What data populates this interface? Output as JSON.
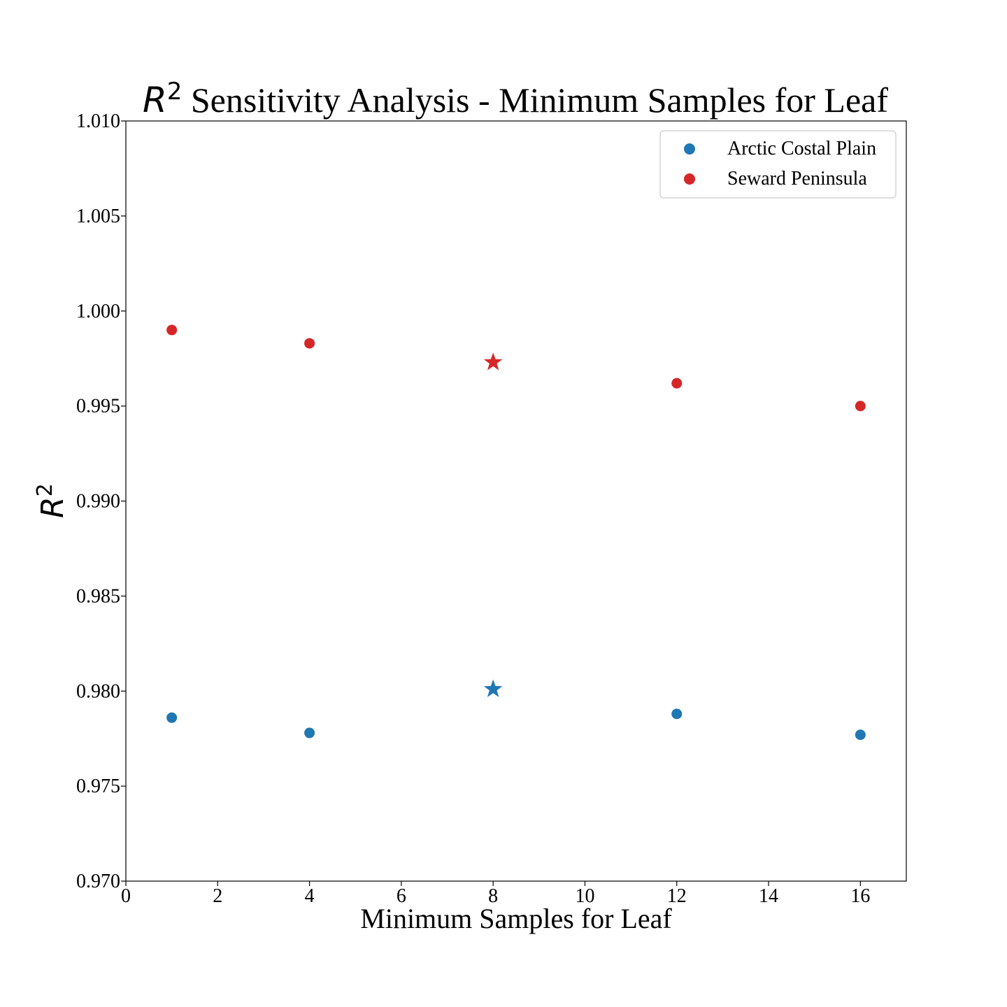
{
  "chart_data": {
    "type": "scatter",
    "title": {
      "math_symbol": "R",
      "math_superscript": "2",
      "text": " Sensitivity Analysis - Minimum Samples for Leaf"
    },
    "xlabel": "Minimum Samples for Leaf",
    "ylabel": {
      "math_symbol": "R",
      "math_superscript": "2"
    },
    "xlim": [
      0,
      17
    ],
    "ylim": [
      0.97,
      1.01
    ],
    "xticks": [
      0,
      2,
      4,
      6,
      8,
      10,
      12,
      14,
      16
    ],
    "xtick_labels": [
      "0",
      "2",
      "4",
      "6",
      "8",
      "10",
      "12",
      "14",
      "16"
    ],
    "yticks": [
      0.97,
      0.975,
      0.98,
      0.985,
      0.99,
      0.995,
      1.0,
      1.005,
      1.01
    ],
    "ytick_labels": [
      "0.970",
      "0.975",
      "0.980",
      "0.985",
      "0.990",
      "0.995",
      "1.000",
      "1.005",
      "1.010"
    ],
    "grid": false,
    "legend_position": "top-right",
    "series": [
      {
        "name": "Arctic Costal Plain",
        "color": "#1f77b4",
        "points": [
          {
            "x": 1,
            "y": 0.9786,
            "marker": "circle"
          },
          {
            "x": 4,
            "y": 0.9778,
            "marker": "circle"
          },
          {
            "x": 8,
            "y": 0.9801,
            "marker": "star"
          },
          {
            "x": 12,
            "y": 0.9788,
            "marker": "circle"
          },
          {
            "x": 16,
            "y": 0.9777,
            "marker": "circle"
          }
        ]
      },
      {
        "name": "Seward Peninsula",
        "color": "#d62728",
        "points": [
          {
            "x": 1,
            "y": 0.999,
            "marker": "circle"
          },
          {
            "x": 4,
            "y": 0.9983,
            "marker": "circle"
          },
          {
            "x": 8,
            "y": 0.9973,
            "marker": "star"
          },
          {
            "x": 12,
            "y": 0.9962,
            "marker": "circle"
          },
          {
            "x": 16,
            "y": 0.995,
            "marker": "circle"
          }
        ]
      }
    ]
  }
}
